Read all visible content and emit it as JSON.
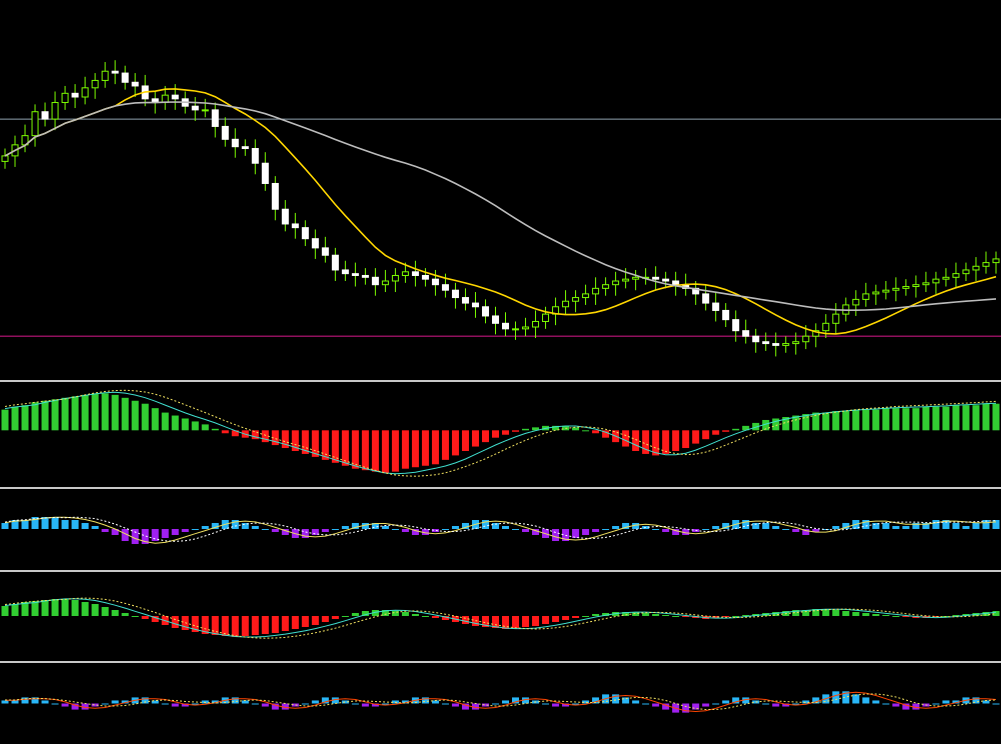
{
  "colors": {
    "background": "#000000",
    "candle_up": "#7CFC00",
    "candle_down": "#FFFFFF",
    "ma_fast": "#FFD700",
    "ma_slow": "#BDBDBD",
    "support_line": "#C0157C",
    "resistance_line": "#8FA3B0",
    "hist_pos": "#32CD32",
    "hist_neg": "#FF1A1A",
    "hist2_pos": "#29B6F6",
    "hist2_neg": "#A020F0",
    "signal_cyan": "#40E0D0",
    "signal_yellow": "#F0E060",
    "signal_red": "#FF4500",
    "separator": "#C8C8C8"
  },
  "chart_data": [
    {
      "type": "candlestick",
      "panel": "price",
      "series": [
        {
          "values": [
            118,
            124,
            129,
            142,
            138,
            147,
            152,
            150,
            155,
            159,
            164,
            163,
            158,
            156,
            149,
            147,
            151,
            149,
            145,
            143,
            143,
            134,
            127,
            123,
            122,
            114,
            103,
            89,
            81,
            79,
            73,
            68,
            64,
            56,
            54,
            53,
            52,
            48,
            50,
            53,
            55,
            53,
            51,
            48,
            45,
            41,
            38,
            36,
            31,
            27,
            24,
            24,
            25,
            28,
            32,
            36,
            39,
            41,
            43,
            46,
            48,
            50,
            51,
            52,
            52,
            51,
            50,
            48,
            46,
            43,
            38,
            34,
            29,
            23,
            20,
            17,
            16,
            15,
            16,
            17,
            20,
            23,
            27,
            32,
            37,
            40,
            43,
            44,
            45,
            46,
            47,
            48,
            49,
            51,
            52,
            54,
            56,
            58,
            60,
            62
          ]
        },
        {
          "values": [
            150,
            150,
            150,
            150,
            150,
            150,
            150,
            150,
            150,
            150,
            150,
            150,
            150,
            150,
            150,
            150,
            150,
            150,
            150,
            150,
            150,
            150,
            150,
            150,
            150,
            150,
            150,
            150,
            150,
            150,
            150,
            150,
            150,
            150,
            150,
            150,
            150,
            150,
            150,
            150,
            150,
            150,
            150,
            150,
            150,
            150,
            150,
            150,
            150,
            150,
            150,
            150,
            150,
            150,
            150,
            150,
            150,
            150,
            150,
            150,
            150,
            150,
            150,
            150,
            150,
            150,
            150,
            150,
            150,
            150,
            150,
            150,
            150,
            150,
            150,
            150,
            150,
            150,
            150,
            150,
            150,
            150,
            150,
            150,
            150,
            150,
            150,
            150,
            150,
            150,
            150,
            150,
            150,
            150,
            150,
            150,
            150,
            150,
            150,
            150
          ]
        },
        {
          "values": [
            20,
            20,
            20,
            20,
            20,
            20,
            20,
            20,
            20,
            20,
            20,
            20,
            20,
            20,
            20,
            20,
            20,
            20,
            20,
            20,
            21,
            21,
            21,
            21,
            21,
            21,
            21,
            21,
            21,
            21,
            21,
            21,
            21,
            21,
            21,
            21,
            21,
            21,
            21,
            21,
            21,
            21,
            21,
            21,
            21,
            21,
            21,
            21,
            21,
            21,
            21,
            21,
            21,
            21,
            21,
            21,
            21,
            21,
            21,
            21,
            21,
            21,
            21,
            21,
            21,
            21,
            21,
            21,
            21,
            21,
            22,
            22,
            22,
            22,
            22,
            22,
            22,
            22,
            22,
            22,
            22,
            22,
            22,
            22,
            22,
            22,
            22,
            22,
            22,
            22,
            22,
            22,
            22,
            22,
            22,
            22,
            22,
            22,
            22,
            22
          ]
        }
      ],
      "closes": [
        118,
        124,
        129,
        142,
        138,
        147,
        152,
        150,
        155,
        159,
        164,
        163,
        158,
        156,
        149,
        147,
        151,
        149,
        145,
        143,
        143,
        134,
        127,
        123,
        122,
        114,
        103,
        89,
        81,
        79,
        73,
        68,
        64,
        56,
        54,
        53,
        52,
        48,
        50,
        53,
        55,
        53,
        51,
        48,
        45,
        41,
        38,
        36,
        31,
        27,
        24,
        24,
        25,
        28,
        32,
        36,
        39,
        41,
        43,
        46,
        48,
        50,
        51,
        52,
        52,
        51,
        50,
        48,
        46,
        43,
        38,
        34,
        29,
        23,
        20,
        17,
        16,
        15,
        16,
        17,
        20,
        23,
        27,
        32,
        37,
        40,
        43,
        44,
        45,
        46,
        47,
        48,
        49,
        51,
        52,
        54,
        56,
        58,
        60,
        62
      ],
      "ylim": [
        0,
        200
      ]
    },
    {
      "type": "bar",
      "panel": "macd",
      "series": [
        {
          "values": [
            14,
            16,
            17,
            19,
            20,
            21,
            22,
            23,
            24,
            25,
            25,
            24,
            22,
            20,
            18,
            15,
            12,
            10,
            8,
            6,
            4,
            1,
            -2,
            -4,
            -5,
            -6,
            -8,
            -10,
            -12,
            -14,
            -16,
            -18,
            -20,
            -22,
            -24,
            -26,
            -27,
            -28,
            -29,
            -28,
            -26,
            -25,
            -24,
            -23,
            -20,
            -17,
            -14,
            -11,
            -8,
            -5,
            -3,
            -1,
            1,
            2,
            3,
            3,
            3,
            2,
            0,
            -2,
            -5,
            -8,
            -11,
            -14,
            -16,
            -17,
            -16,
            -14,
            -12,
            -9,
            -6,
            -3,
            -1,
            1,
            3,
            5,
            7,
            8,
            9,
            10,
            11,
            12,
            12,
            13,
            13,
            14,
            14,
            14,
            15,
            15,
            15,
            15,
            16,
            16,
            16,
            17,
            17,
            17,
            18,
            18
          ]
        }
      ],
      "ylim": [
        -35,
        30
      ]
    },
    {
      "type": "bar",
      "panel": "oscillator",
      "series": [
        {
          "values": [
            2,
            3,
            3,
            4,
            4,
            4,
            3,
            3,
            2,
            1,
            -1,
            -2,
            -4,
            -5,
            -5,
            -4,
            -3,
            -2,
            -1,
            0,
            1,
            2,
            3,
            3,
            2,
            1,
            0,
            -1,
            -2,
            -3,
            -3,
            -2,
            -1,
            0,
            1,
            2,
            2,
            2,
            1,
            0,
            -1,
            -2,
            -2,
            -1,
            0,
            1,
            2,
            3,
            3,
            2,
            1,
            0,
            -1,
            -2,
            -3,
            -4,
            -4,
            -3,
            -2,
            -1,
            0,
            1,
            2,
            2,
            1,
            0,
            -1,
            -2,
            -2,
            -1,
            0,
            1,
            2,
            3,
            3,
            2,
            2,
            1,
            0,
            -1,
            -2,
            -1,
            0,
            1,
            2,
            3,
            3,
            2,
            2,
            1,
            1,
            2,
            2,
            3,
            3,
            2,
            1,
            2,
            3,
            3
          ]
        }
      ],
      "ylim": [
        -12,
        12
      ]
    },
    {
      "type": "bar",
      "panel": "momentum",
      "series": [
        {
          "values": [
            10,
            12,
            14,
            15,
            16,
            17,
            17,
            16,
            14,
            12,
            9,
            6,
            3,
            0,
            -3,
            -6,
            -9,
            -12,
            -14,
            -16,
            -18,
            -19,
            -20,
            -21,
            -20,
            -19,
            -18,
            -17,
            -15,
            -13,
            -11,
            -9,
            -6,
            -3,
            0,
            3,
            5,
            6,
            6,
            5,
            4,
            2,
            0,
            -2,
            -4,
            -6,
            -8,
            -10,
            -11,
            -12,
            -13,
            -12,
            -11,
            -10,
            -8,
            -6,
            -4,
            -2,
            0,
            2,
            3,
            4,
            4,
            4,
            3,
            2,
            1,
            0,
            -1,
            -2,
            -3,
            -2,
            -1,
            0,
            1,
            2,
            3,
            4,
            5,
            6,
            6,
            7,
            7,
            6,
            5,
            4,
            3,
            2,
            1,
            0,
            -1,
            -2,
            -2,
            -1,
            0,
            1,
            2,
            3,
            4,
            5
          ]
        }
      ],
      "ylim": [
        -40,
        40
      ]
    },
    {
      "type": "bar",
      "panel": "volume-osc",
      "series": [
        {
          "values": [
            1,
            1,
            2,
            2,
            1,
            0,
            -1,
            -2,
            -2,
            -1,
            0,
            1,
            1,
            2,
            2,
            1,
            0,
            -1,
            -1,
            0,
            1,
            1,
            2,
            2,
            1,
            0,
            -1,
            -2,
            -2,
            -1,
            0,
            1,
            2,
            2,
            1,
            0,
            -1,
            -1,
            0,
            1,
            1,
            2,
            2,
            1,
            0,
            -1,
            -2,
            -2,
            -1,
            0,
            1,
            2,
            2,
            1,
            0,
            -1,
            -1,
            0,
            1,
            2,
            3,
            3,
            2,
            1,
            0,
            -1,
            -2,
            -3,
            -3,
            -2,
            -1,
            0,
            1,
            2,
            2,
            1,
            0,
            -1,
            -1,
            0,
            1,
            2,
            3,
            4,
            4,
            3,
            2,
            1,
            0,
            -1,
            -2,
            -2,
            -1,
            0,
            1,
            1,
            2,
            2,
            1,
            0
          ]
        }
      ],
      "ylim": [
        -12,
        12
      ]
    }
  ]
}
